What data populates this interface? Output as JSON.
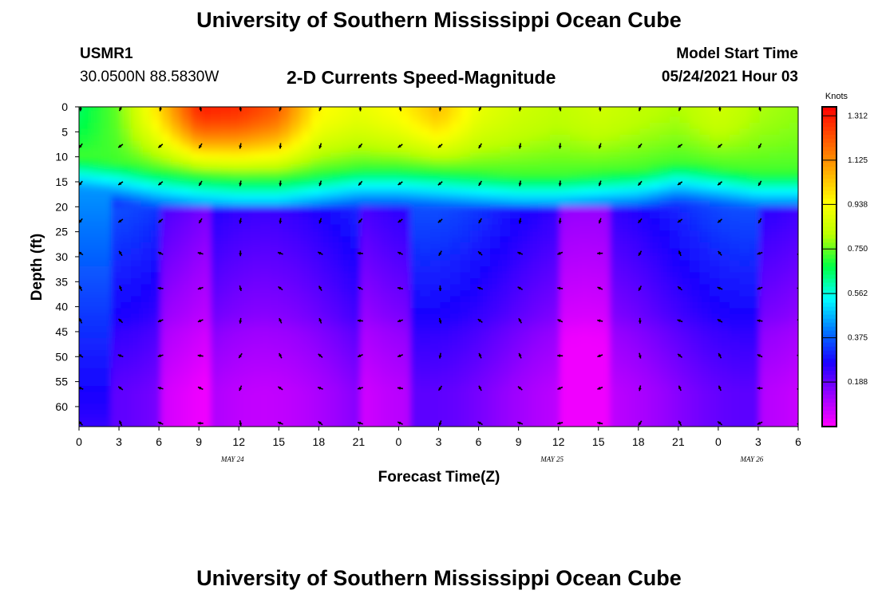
{
  "header": {
    "title": "University of Southern Mississippi Ocean Cube",
    "station": "USMR1",
    "coords": "30.0500N  88.5830W",
    "plot_title": "2-D Currents Speed-Magnitude",
    "start_label": "Model Start Time",
    "start_value": "05/24/2021 Hour 03"
  },
  "footer": {
    "title": "University of Southern Mississippi Ocean Cube"
  },
  "chart_data": {
    "type": "heatmap",
    "title": "2-D Currents Speed-Magnitude",
    "xlabel": "Forecast Time(Z)",
    "ylabel": "Depth (ft)",
    "x_ticks": [
      "0",
      "3",
      "6",
      "9",
      "12",
      "15",
      "18",
      "21",
      "0",
      "3",
      "6",
      "9",
      "12",
      "15",
      "18",
      "21",
      "0",
      "3",
      "6"
    ],
    "date_labels": [
      {
        "text": "MAY 24",
        "at_tick": 4
      },
      {
        "text": "MAY 25",
        "at_tick": 12
      },
      {
        "text": "MAY 26",
        "at_tick": 17
      }
    ],
    "y_ticks": [
      0,
      5,
      10,
      15,
      20,
      25,
      30,
      35,
      40,
      45,
      50,
      55,
      60
    ],
    "ylim": [
      0,
      64
    ],
    "y_inverted": true,
    "colorbar": {
      "unit": "Knots",
      "ticks": [
        "0.188",
        "0.375",
        "0.562",
        "0.750",
        "0.938",
        "1.125",
        "1.312"
      ],
      "range": [
        0,
        1.35
      ],
      "colors": [
        "#ff00ff",
        "#9900ff",
        "#1a00ff",
        "#0077ff",
        "#00ffff",
        "#00ff44",
        "#bbff00",
        "#ffff00",
        "#ffaa00",
        "#ff5500",
        "#ff0000"
      ]
    },
    "vector_depths": [
      0,
      7.5,
      15,
      22.5,
      29,
      36,
      42.5,
      49.5,
      56,
      63
    ],
    "surface_speed_knots": [
      0.65,
      0.75,
      1.0,
      1.3,
      1.28,
      1.2,
      0.95,
      0.9,
      0.95,
      1.05,
      0.9,
      0.85,
      0.82,
      0.85,
      0.82,
      0.8,
      0.85,
      0.8,
      0.78
    ],
    "mixed_layer_depth_ft": [
      10,
      11,
      12.5,
      13.5,
      14,
      14,
      13,
      12,
      12,
      12.5,
      13,
      13.5,
      13.5,
      13,
      12.5,
      11,
      12,
      13,
      13
    ]
  }
}
